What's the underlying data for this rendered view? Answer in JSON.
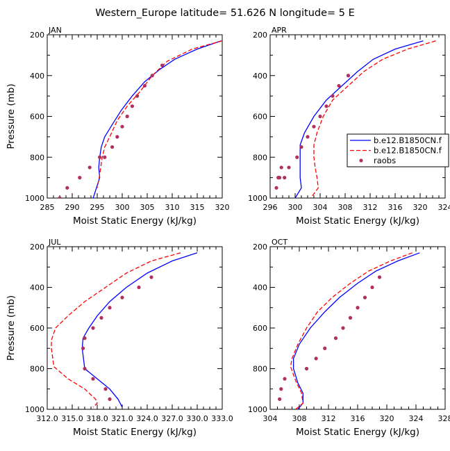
{
  "title": "Western_Europe  latitude= 51.626 N longitude= 5 E",
  "legend": {
    "entries": [
      {
        "label": "b.e12.B1850CN.f",
        "color": "#0000ff",
        "style": "solid"
      },
      {
        "label": "b.e12.B1850CN.f",
        "color": "#ff0000",
        "style": "dashed"
      },
      {
        "label": "raobs",
        "color": "#b03060",
        "style": "dot"
      }
    ]
  },
  "chart_data": [
    {
      "type": "line",
      "panel_label": "JAN",
      "xlabel": "Moist Static Energy (kJ/kg)",
      "ylabel": "Pressure (mb)",
      "xlim": [
        285,
        320
      ],
      "ylim": [
        1000,
        200
      ],
      "xticks": [
        285,
        290,
        295,
        300,
        305,
        310,
        315,
        320
      ],
      "xtick_labels": [
        "285",
        "290",
        "295",
        "300",
        "305",
        "310",
        "315",
        "320"
      ],
      "yticks": [
        200,
        400,
        600,
        800,
        1000
      ],
      "ytick_labels": [
        "200",
        "400",
        "600",
        "800",
        "1000"
      ],
      "series": [
        {
          "style": "solid",
          "color": "#0000ff",
          "x": [
            319.8,
            315,
            310.5,
            307.5,
            304.5,
            302,
            299.8,
            298,
            296.5,
            295.8,
            295.5,
            295.3,
            295.5,
            294.2
          ],
          "y": [
            230,
            270,
            320,
            370,
            430,
            500,
            570,
            640,
            700,
            750,
            800,
            850,
            900,
            1000
          ]
        },
        {
          "style": "dashed",
          "color": "#ff0000",
          "x": [
            320,
            314,
            309,
            306,
            303.5,
            301,
            299,
            297.5,
            296.5,
            296,
            295.7,
            295.4,
            295
          ],
          "y": [
            230,
            270,
            330,
            400,
            480,
            550,
            620,
            700,
            750,
            800,
            850,
            900,
            950
          ]
        },
        {
          "style": "dot",
          "color": "#b03060",
          "x": [
            308,
            306,
            304.5,
            303,
            302,
            301,
            300,
            299,
            298,
            296.5,
            295.5,
            293.5,
            291.5,
            289,
            287.5
          ],
          "y": [
            350,
            400,
            450,
            500,
            550,
            600,
            650,
            700,
            750,
            800,
            800,
            850,
            900,
            950,
            1000
          ]
        }
      ]
    },
    {
      "type": "line",
      "panel_label": "APR",
      "xlabel": "Moist Static Energy (kJ/kg)",
      "ylabel": "",
      "xlim": [
        296,
        324
      ],
      "ylim": [
        1000,
        200
      ],
      "xticks": [
        296,
        300,
        304,
        308,
        312,
        316,
        320,
        324
      ],
      "xtick_labels": [
        "296",
        "300",
        "304",
        "308",
        "312",
        "316",
        "320",
        "324"
      ],
      "yticks": [
        200,
        400,
        600,
        800,
        1000
      ],
      "ytick_labels": [
        "200",
        "400",
        "600",
        "800",
        "1000"
      ],
      "series": [
        {
          "style": "solid",
          "color": "#0000ff",
          "x": [
            320.5,
            316,
            312.5,
            310,
            307.5,
            305,
            303,
            301.5,
            300.8,
            300.8,
            300.8,
            300.8,
            301,
            300
          ],
          "y": [
            230,
            270,
            320,
            380,
            450,
            520,
            600,
            680,
            740,
            800,
            850,
            900,
            950,
            1000
          ]
        },
        {
          "style": "dashed",
          "color": "#ff0000",
          "x": [
            322.5,
            318,
            314,
            311,
            308.5,
            306,
            304.5,
            303.5,
            303,
            303,
            303.2,
            303.5,
            303.7,
            302.5
          ],
          "y": [
            230,
            270,
            320,
            380,
            450,
            520,
            600,
            680,
            740,
            800,
            850,
            900,
            950,
            1000
          ]
        },
        {
          "style": "dot",
          "color": "#b03060",
          "x": [
            308.5,
            307,
            306,
            305,
            304,
            303,
            302,
            301,
            300.3,
            299,
            298.3,
            297.8,
            297.5,
            297.3,
            297
          ],
          "y": [
            400,
            450,
            500,
            550,
            600,
            650,
            700,
            750,
            800,
            850,
            900,
            850,
            900,
            900,
            950
          ]
        }
      ]
    },
    {
      "type": "line",
      "panel_label": "JUL",
      "xlabel": "Moist Static Energy (kJ/kg)",
      "ylabel": "Pressure (mb)",
      "xlim": [
        312.0,
        333.0
      ],
      "ylim": [
        1000,
        200
      ],
      "xticks": [
        312.0,
        315.0,
        318.0,
        321.0,
        324.0,
        327.0,
        330.0,
        333.0
      ],
      "xtick_labels": [
        "312.0",
        "315.0",
        "318.0",
        "321.0",
        "324.0",
        "327.0",
        "330.0",
        "333.0"
      ],
      "yticks": [
        200,
        400,
        600,
        800,
        1000
      ],
      "ytick_labels": [
        "200",
        "400",
        "600",
        "800",
        "1000"
      ],
      "series": [
        {
          "style": "solid",
          "color": "#0000ff",
          "x": [
            330,
            327,
            324,
            321.5,
            319.5,
            318,
            317,
            316.3,
            316.2,
            316.5,
            318,
            319.5,
            320.5,
            321
          ],
          "y": [
            230,
            270,
            330,
            400,
            470,
            540,
            600,
            650,
            700,
            800,
            850,
            900,
            950,
            990
          ]
        },
        {
          "style": "dashed",
          "color": "#ff0000",
          "x": [
            328,
            324.5,
            321.5,
            319,
            316.5,
            314.5,
            313,
            312.5,
            312.5,
            312.8,
            314.5,
            316.5,
            317.8,
            318,
            317.5
          ],
          "y": [
            230,
            270,
            330,
            400,
            470,
            540,
            600,
            660,
            700,
            790,
            850,
            900,
            950,
            970,
            990
          ]
        },
        {
          "style": "dot",
          "color": "#b03060",
          "x": [
            324.5,
            323,
            321,
            319.5,
            318.5,
            317.5,
            316.5,
            316.3,
            316.5,
            317.5,
            319,
            319.5
          ],
          "y": [
            350,
            400,
            450,
            500,
            550,
            600,
            650,
            700,
            800,
            850,
            900,
            950
          ]
        }
      ]
    },
    {
      "type": "line",
      "panel_label": "OCT",
      "xlabel": "Moist Static Energy (kJ/kg)",
      "ylabel": "",
      "xlim": [
        304,
        328
      ],
      "ylim": [
        1000,
        200
      ],
      "xticks": [
        304,
        308,
        312,
        316,
        320,
        324,
        328
      ],
      "xtick_labels": [
        "304",
        "308",
        "312",
        "316",
        "320",
        "324",
        "328"
      ],
      "yticks": [
        200,
        400,
        600,
        800,
        1000
      ],
      "ytick_labels": [
        "200",
        "400",
        "600",
        "800",
        "1000"
      ],
      "series": [
        {
          "style": "solid",
          "color": "#0000ff",
          "x": [
            324.5,
            321.5,
            318.5,
            316,
            313.5,
            311.5,
            309.5,
            308,
            307.2,
            307.2,
            307.8,
            308.5,
            308.5,
            307.8
          ],
          "y": [
            230,
            270,
            320,
            380,
            450,
            520,
            600,
            680,
            750,
            800,
            870,
            920,
            970,
            1000
          ]
        },
        {
          "style": "dashed",
          "color": "#ff0000",
          "x": [
            323.5,
            320.5,
            317.5,
            315,
            312.5,
            310.5,
            309,
            307.8,
            307,
            306.8,
            307.5,
            308.3,
            308.5,
            307.5
          ],
          "y": [
            230,
            270,
            320,
            380,
            450,
            520,
            600,
            680,
            750,
            790,
            860,
            920,
            970,
            1000
          ]
        },
        {
          "style": "dot",
          "color": "#b03060",
          "x": [
            319,
            318,
            317,
            316,
            315,
            314,
            313,
            311.5,
            310.3,
            309,
            306,
            305.5,
            305.3
          ],
          "y": [
            350,
            400,
            450,
            500,
            550,
            600,
            650,
            700,
            750,
            800,
            850,
            900,
            950
          ]
        }
      ]
    }
  ]
}
